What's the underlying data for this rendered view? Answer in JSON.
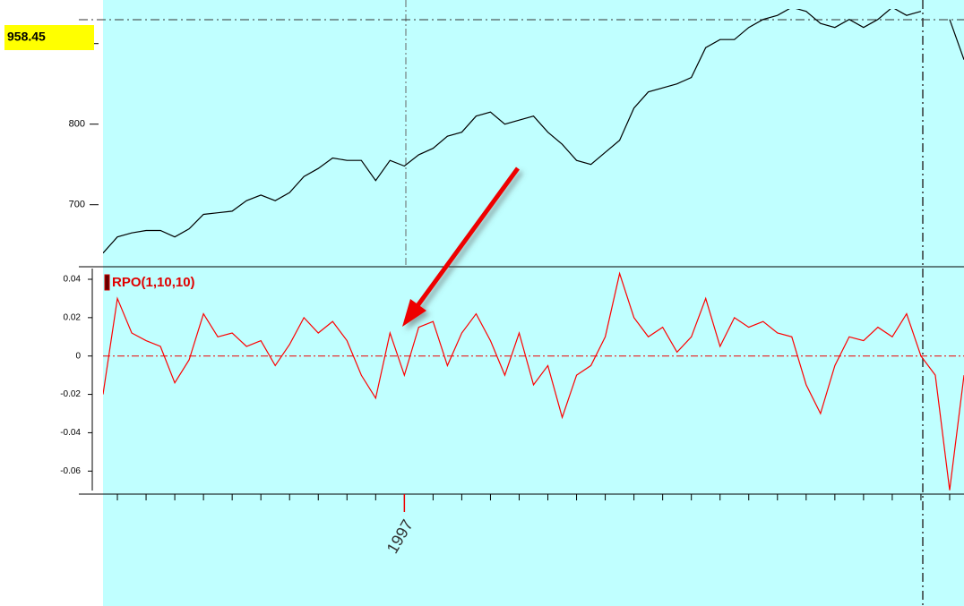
{
  "chart_data": [
    {
      "type": "line",
      "annotation": "958.45",
      "x": [
        0,
        1,
        2,
        3,
        4,
        5,
        6,
        7,
        8,
        9,
        10,
        11,
        12,
        13,
        14,
        15,
        16,
        17,
        18,
        19,
        20,
        21,
        22,
        23,
        24,
        25,
        26,
        27,
        28,
        29,
        30,
        31,
        32,
        33,
        34,
        35,
        36,
        37,
        38,
        39,
        40,
        41,
        42,
        43,
        44,
        45,
        46,
        47,
        48,
        49,
        50,
        51,
        52,
        53,
        54,
        55,
        56,
        57,
        58,
        59,
        60
      ],
      "values": [
        640,
        660,
        665,
        668,
        668,
        660,
        670,
        688,
        690,
        692,
        705,
        712,
        705,
        715,
        735,
        745,
        758,
        755,
        755,
        730,
        755,
        748,
        762,
        770,
        785,
        790,
        810,
        815,
        800,
        805,
        810,
        790,
        775,
        755,
        750,
        765,
        780,
        820,
        840,
        845,
        850,
        858,
        895,
        905,
        905,
        920,
        930,
        935,
        945,
        940,
        925,
        920,
        930,
        920,
        930,
        945,
        935,
        940,
        null,
        930,
        880
      ],
      "color": "#000000",
      "xlim": [
        0,
        60
      ],
      "ylim": [
        623,
        943
      ],
      "yticks": [
        700,
        800,
        900
      ]
    },
    {
      "type": "line",
      "series": [
        {
          "name": "RPO(1,10,10)",
          "color": "#ff0000",
          "values": [
            -0.02,
            0.03,
            0.012,
            0.008,
            0.005,
            -0.014,
            -0.002,
            0.022,
            0.01,
            0.012,
            0.005,
            0.008,
            -0.005,
            0.006,
            0.02,
            0.012,
            0.018,
            0.008,
            -0.01,
            -0.022,
            0.012,
            -0.01,
            0.015,
            0.018,
            -0.005,
            0.012,
            0.022,
            0.008,
            -0.01,
            0.012,
            -0.015,
            -0.005,
            -0.032,
            -0.01,
            -0.005,
            0.01,
            0.043,
            0.02,
            0.01,
            0.015,
            0.002,
            0.01,
            0.03,
            0.005,
            0.02,
            0.015,
            0.018,
            0.012,
            0.01,
            -0.015,
            -0.03,
            -0.005,
            0.01,
            0.008,
            0.015,
            0.01,
            0.022,
            0,
            -0.01,
            -0.07,
            -0.01
          ]
        }
      ],
      "x": [
        0,
        1,
        2,
        3,
        4,
        5,
        6,
        7,
        8,
        9,
        10,
        11,
        12,
        13,
        14,
        15,
        16,
        17,
        18,
        19,
        20,
        21,
        22,
        23,
        24,
        25,
        26,
        27,
        28,
        29,
        30,
        31,
        32,
        33,
        34,
        35,
        36,
        37,
        38,
        39,
        40,
        41,
        42,
        43,
        44,
        45,
        46,
        47,
        48,
        49,
        50,
        51,
        52,
        53,
        54,
        55,
        56,
        57,
        58,
        59,
        60
      ],
      "xlim": [
        0,
        60
      ],
      "ylim": [
        -0.072,
        0.0456
      ],
      "yticks": [
        0.04,
        0.02,
        0,
        -0.02,
        -0.04,
        -0.06
      ],
      "xticks": [
        {
          "value": 21,
          "label": "1997"
        }
      ],
      "minor_xticks": [
        1,
        3,
        5,
        7,
        9,
        11,
        13,
        15,
        17,
        19,
        21,
        23,
        25,
        27,
        29,
        31,
        33,
        35,
        37,
        39,
        41,
        43,
        45,
        47,
        49,
        51,
        53,
        55,
        57,
        59
      ]
    }
  ]
}
